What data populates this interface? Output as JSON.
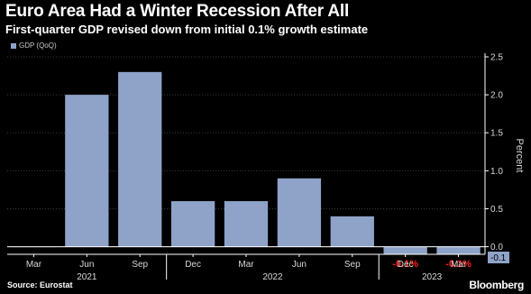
{
  "header": {
    "title": "Euro Area Had a Winter Recession After All",
    "subtitle": "First-quarter GDP revised down from initial 0.1% growth estimate"
  },
  "footer": {
    "source": "Source: Eurostat",
    "brand": "Bloomberg"
  },
  "colors": {
    "background": "#000000",
    "bar": "#8fa3c8",
    "negative_label": "#ff1a1a",
    "axis": "#ffffff",
    "grid": "#3a3a3a",
    "tick_text": "#d8d8d8"
  },
  "chart_data": {
    "type": "bar",
    "categories": [
      "Mar",
      "Jun",
      "Sep",
      "Dec",
      "Mar",
      "Jun",
      "Sep",
      "Dec",
      "Mar"
    ],
    "year_labels": [
      {
        "label": "2021",
        "span": [
          0,
          3
        ]
      },
      {
        "label": "2022",
        "span": [
          3,
          7
        ]
      },
      {
        "label": "2023",
        "span": [
          7,
          9
        ]
      }
    ],
    "series": [
      {
        "name": "GDP (QoQ)",
        "values": [
          0.0,
          2.0,
          2.3,
          0.6,
          0.6,
          0.9,
          0.4,
          -0.1,
          -0.1
        ]
      }
    ],
    "data_labels": [
      {
        "index": 7,
        "text": "-0.1%"
      },
      {
        "index": 8,
        "text": "-0.1%"
      }
    ],
    "last_value_label": "-0.1",
    "ylabel": "Percent",
    "ylim": [
      -0.1,
      2.5
    ],
    "yticks": [
      "0.0",
      "0.5",
      "1.0",
      "1.5",
      "2.0",
      "2.5"
    ],
    "ytick_values": [
      0,
      0.5,
      1.0,
      1.5,
      2.0,
      2.5
    ],
    "grid": true,
    "y_axis_side": "right",
    "legend_position": "top-left"
  }
}
